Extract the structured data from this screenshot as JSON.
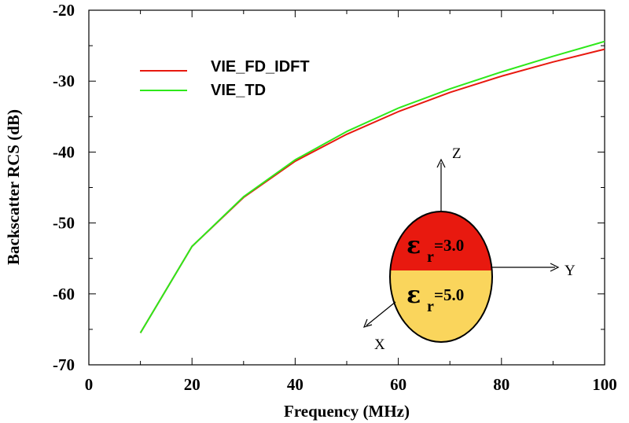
{
  "chart_data": {
    "type": "line",
    "title": "",
    "xlabel": "Frequency (MHz)",
    "ylabel": "Backscatter RCS (dB)",
    "xlim": [
      0,
      100
    ],
    "ylim": [
      -70,
      -20
    ],
    "xticks": [
      0,
      20,
      40,
      60,
      80,
      100
    ],
    "yticks": [
      -70,
      -60,
      -50,
      -40,
      -30,
      -20
    ],
    "x_minor_step": 10,
    "y_minor_step": 5,
    "grid": false,
    "legend_position": "top-left",
    "series": [
      {
        "name": "VIE_FD_IDFT",
        "color": "#e8190f",
        "x": [
          10,
          20,
          30,
          40,
          50,
          60,
          70,
          80,
          90,
          100
        ],
        "y": [
          -65.5,
          -53.3,
          -46.4,
          -41.3,
          -37.5,
          -34.3,
          -31.6,
          -29.3,
          -27.3,
          -25.5
        ]
      },
      {
        "name": "VIE_TD",
        "color": "#2ee81a",
        "x": [
          10,
          20,
          30,
          40,
          50,
          60,
          70,
          80,
          90,
          100
        ],
        "y": [
          -65.5,
          -53.3,
          -46.3,
          -41.1,
          -37.1,
          -33.8,
          -31.1,
          -28.7,
          -26.5,
          -24.4
        ]
      }
    ],
    "inset": {
      "axis_labels": {
        "z": "Z",
        "y": "Y",
        "x": "X"
      },
      "upper_region": {
        "symbol": "ε",
        "subscript": "r",
        "value_text": "=3.0",
        "color": "#e8190f"
      },
      "lower_region": {
        "symbol": "ε",
        "subscript": "r",
        "value_text": "=5.0",
        "color": "#fad55c"
      }
    }
  }
}
